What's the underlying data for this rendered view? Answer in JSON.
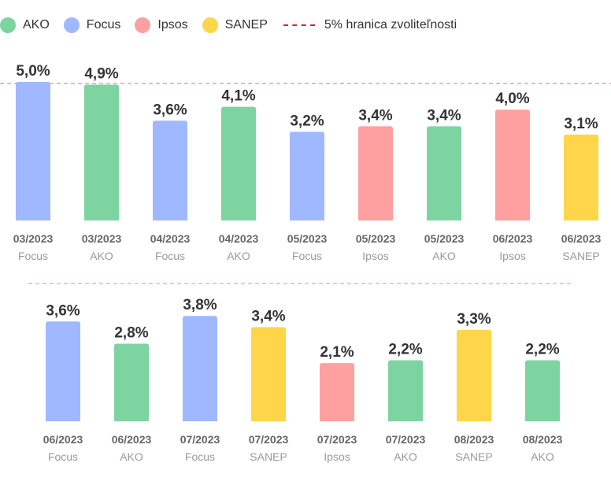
{
  "legend": {
    "items": [
      {
        "label": "AKO",
        "color": "#7ed4a0"
      },
      {
        "label": "Focus",
        "color": "#a0b8ff"
      },
      {
        "label": "Ipsos",
        "color": "#ffa0a0"
      },
      {
        "label": "SANEP",
        "color": "#ffd54a"
      }
    ],
    "threshold_label": "5% hranica zvoliteľnosti",
    "threshold_color": "#e02020"
  },
  "chart_data": [
    {
      "type": "bar",
      "threshold": 5.0,
      "ylim": [
        0,
        5.0
      ],
      "categories": [
        "03/2023",
        "03/2023",
        "04/2023",
        "04/2023",
        "05/2023",
        "05/2023",
        "05/2023",
        "06/2023",
        "06/2023"
      ],
      "agencies": [
        "Focus",
        "AKO",
        "Focus",
        "AKO",
        "Focus",
        "Ipsos",
        "AKO",
        "Ipsos",
        "SANEP"
      ],
      "values": [
        5.0,
        4.9,
        3.6,
        4.1,
        3.2,
        3.4,
        3.4,
        4.0,
        3.1
      ],
      "value_labels": [
        "5,0%",
        "4,9%",
        "3,6%",
        "4,1%",
        "3,2%",
        "3,4%",
        "3,4%",
        "4,0%",
        "3,1%"
      ]
    },
    {
      "type": "bar",
      "ylim": [
        0,
        5.0
      ],
      "categories": [
        "06/2023",
        "06/2023",
        "07/2023",
        "07/2023",
        "07/2023",
        "07/2023",
        "08/2023",
        "08/2023"
      ],
      "agencies": [
        "Focus",
        "AKO",
        "Focus",
        "SANEP",
        "Ipsos",
        "AKO",
        "SANEP",
        "AKO"
      ],
      "values": [
        3.6,
        2.8,
        3.8,
        3.4,
        2.1,
        2.2,
        3.3,
        2.2
      ],
      "value_labels": [
        "3,6%",
        "2,8%",
        "3,8%",
        "3,4%",
        "2,1%",
        "2,2%",
        "3,3%",
        "2,2%"
      ]
    }
  ]
}
